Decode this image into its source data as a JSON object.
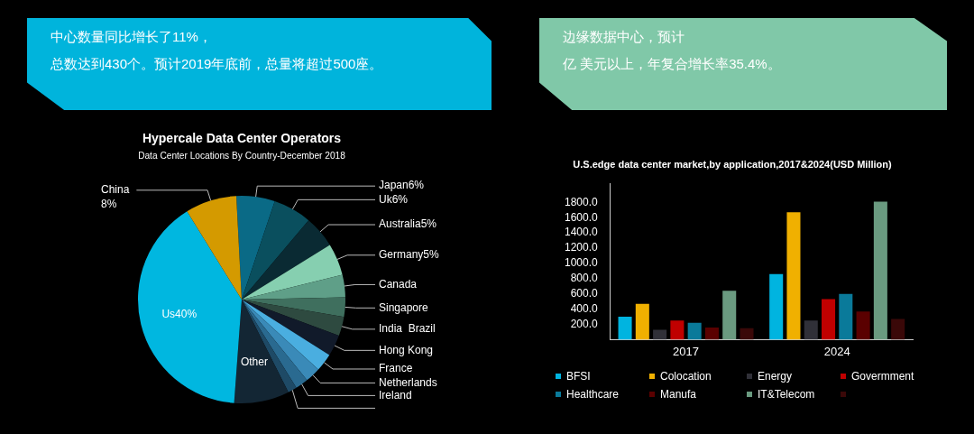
{
  "chart_data": [
    {
      "type": "other",
      "color": "#00b4dc",
      "annotations": [
        "中心数量同比增长了11%，",
        "总数达到430个。预计2019年底前，总量将超过500座。"
      ]
    },
    {
      "type": "pie",
      "title": "Hypercale Data Center Operators",
      "subtitle": "Data Center Locations By Country-December 2018",
      "categories": [
        "Japan",
        "Uk",
        "Australia",
        "Germany",
        "Canada",
        "Singapore",
        "India  Brazil",
        "Hong Kong",
        "France",
        "Netherlands",
        "Ireland",
        null,
        "Other",
        "Us",
        "China"
      ],
      "values": [
        6,
        6,
        5,
        5,
        3.5,
        3,
        3,
        3.3,
        2.8,
        2.4,
        2,
        1.4,
        8.6,
        40,
        8
      ],
      "value_labels": [
        "6%",
        "6%",
        "5%",
        "5%",
        null,
        null,
        null,
        null,
        null,
        null,
        null,
        null,
        null,
        "40%",
        "8%"
      ],
      "colors": [
        "#0a6a86",
        "#0a4f5e",
        "#0a2a33",
        "#86cfb0",
        "#5f9f88",
        "#3f6f5e",
        "#2e4a40",
        "#111a2a",
        "#4aaee0",
        "#3a8ab8",
        "#2a6a90",
        "#1e4a66",
        "#132634",
        "#00b7e0",
        "#d49a00"
      ]
    },
    {
      "type": "other",
      "color": "#80c8a8",
      "annotations": [
        "边缘数据中心，预计",
        "亿 美元以上，年复合增长率35.4%。"
      ]
    },
    {
      "type": "bar",
      "title": "U.S.edge data center market,by application,2017&2024(USD Million)",
      "categories": [
        "2017",
        "2024"
      ],
      "legend": "bottom",
      "ylim": [
        0,
        2050
      ],
      "yticks": [
        {
          "value": 200,
          "label": "200.0"
        },
        {
          "value": 400,
          "label": "400.0"
        },
        {
          "value": 600,
          "label": "600.0"
        },
        {
          "value": 800,
          "label": "800.0"
        },
        {
          "value": 1000,
          "label": "1000.0"
        },
        {
          "value": 1200,
          "label": "1200.0"
        },
        {
          "value": 1400,
          "label": "1400.0"
        },
        {
          "value": 1600,
          "label": "1600.0"
        },
        {
          "value": 1800,
          "label": "1800.0"
        }
      ],
      "series": [
        {
          "name": "BFSI",
          "color": "#00b4e0",
          "values": [
            300,
            860
          ]
        },
        {
          "name": "Colocation",
          "color": "#f0b000",
          "values": [
            470,
            1670
          ]
        },
        {
          "name": "Energy",
          "color": "#303038",
          "values": [
            130,
            250
          ]
        },
        {
          "name": "Govermment",
          "color": "#c00000",
          "values": [
            250,
            530
          ]
        },
        {
          "name": "Healthcare",
          "color": "#0a7a9a",
          "values": [
            220,
            600
          ]
        },
        {
          "name": "Manufa",
          "color": "#5a0000",
          "values": [
            160,
            370
          ]
        },
        {
          "name": "IT&Telecom",
          "color": "#6a9a80",
          "values": [
            640,
            1810
          ]
        },
        {
          "color": "#3a0808",
          "values": [
            150,
            270
          ]
        }
      ]
    }
  ]
}
